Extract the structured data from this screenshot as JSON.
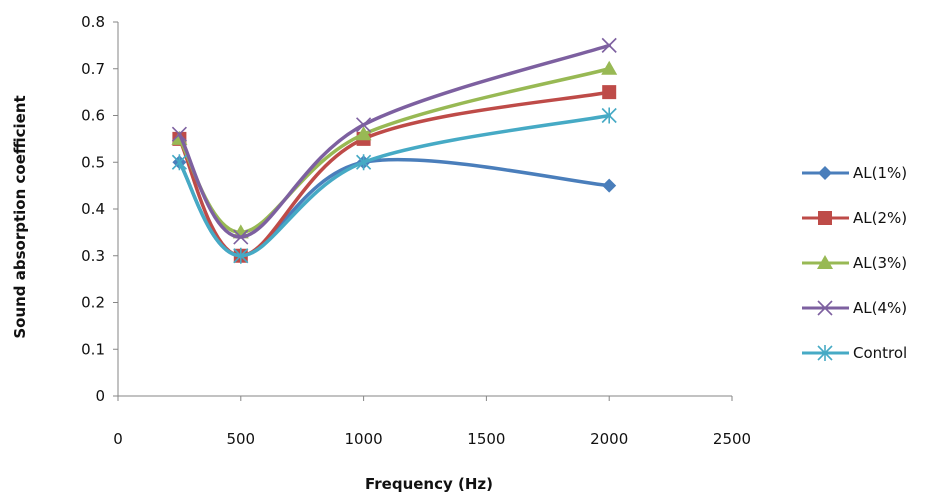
{
  "chart_data": {
    "type": "line",
    "title": "",
    "xlabel": "Frequency (Hz)",
    "ylabel": "Sound absorption coefficient",
    "xlim": [
      0,
      2500
    ],
    "ylim": [
      0,
      0.8
    ],
    "x_ticks": [
      "0",
      "500",
      "1000",
      "1500",
      "2000",
      "2500"
    ],
    "y_ticks": [
      "0",
      "0.1",
      "0.2",
      "0.3",
      "0.4",
      "0.5",
      "0.6",
      "0.7",
      "0.8"
    ],
    "grid": false,
    "smoothed": true,
    "legend_position": "right",
    "x": [
      250,
      500,
      1000,
      2000
    ],
    "series": [
      {
        "name": "AL(1%)",
        "values": [
          0.5,
          0.3,
          0.5,
          0.45
        ],
        "color": "#4a7ebb",
        "marker": "diamond"
      },
      {
        "name": "AL(2%)",
        "values": [
          0.55,
          0.3,
          0.55,
          0.65
        ],
        "color": "#be4b48",
        "marker": "square"
      },
      {
        "name": "AL(3%)",
        "values": [
          0.55,
          0.35,
          0.56,
          0.7
        ],
        "color": "#98b954",
        "marker": "triangle"
      },
      {
        "name": "AL(4%)",
        "values": [
          0.56,
          0.34,
          0.58,
          0.75
        ],
        "color": "#7d60a0",
        "marker": "x"
      },
      {
        "name": "Control",
        "values": [
          0.5,
          0.3,
          0.5,
          0.6
        ],
        "color": "#46aac5",
        "marker": "star"
      }
    ]
  }
}
